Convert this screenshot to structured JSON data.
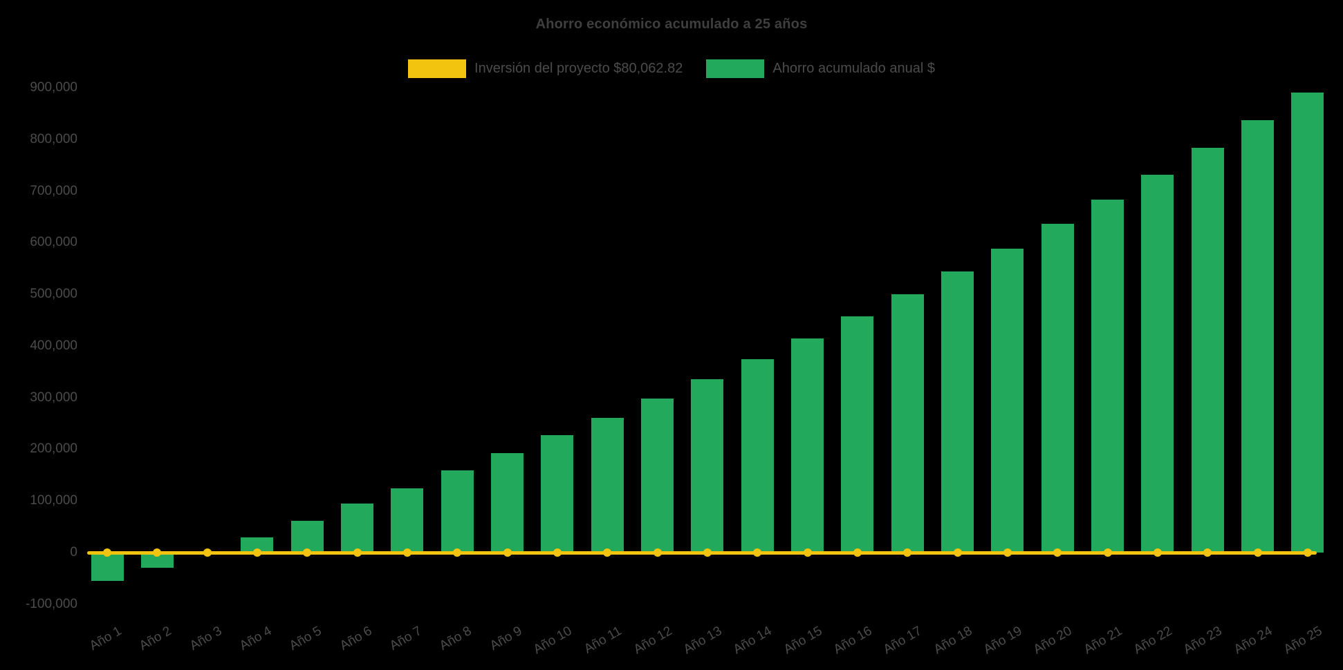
{
  "colors": {
    "background": "#000000",
    "bar_green": "#22A95C",
    "line_yellow": "#F2C40F",
    "title_text": "#3f3f3f",
    "axis_text": "#4c4c4c"
  },
  "chart_data": {
    "type": "bar",
    "title": "Ahorro económico acumulado a 25 años",
    "categories": [
      "Año 1",
      "Año 2",
      "Año 3",
      "Año 4",
      "Año 5",
      "Año 6",
      "Año 7",
      "Año 8",
      "Año 9",
      "Año 10",
      "Año 11",
      "Año 12",
      "Año 13",
      "Año 14",
      "Año 15",
      "Año 16",
      "Año 17",
      "Año 18",
      "Año 19",
      "Año 20",
      "Año 21",
      "Año 22",
      "Año 23",
      "Año 24",
      "Año 25"
    ],
    "series": [
      {
        "name": "Ahorro acumulado anual $",
        "type": "bar",
        "color": "#22A95C",
        "values": [
          -55000,
          -30000,
          -2000,
          30000,
          61000,
          95000,
          125000,
          159000,
          192000,
          227000,
          261000,
          298000,
          335000,
          374000,
          414000,
          457000,
          500000,
          544000,
          589000,
          636000,
          684000,
          732000,
          784000,
          837000,
          890000
        ]
      },
      {
        "name": "Inversión del proyecto $80,062.82",
        "type": "line",
        "color": "#F2C40F",
        "values": [
          0,
          0,
          0,
          0,
          0,
          0,
          0,
          0,
          0,
          0,
          0,
          0,
          0,
          0,
          0,
          0,
          0,
          0,
          0,
          0,
          0,
          0,
          0,
          0,
          0
        ]
      }
    ],
    "xlabel": "",
    "ylabel": "",
    "ylim": [
      -100000,
      900000
    ],
    "ytick_step": 100000,
    "grid": false,
    "legend_position": "top"
  }
}
